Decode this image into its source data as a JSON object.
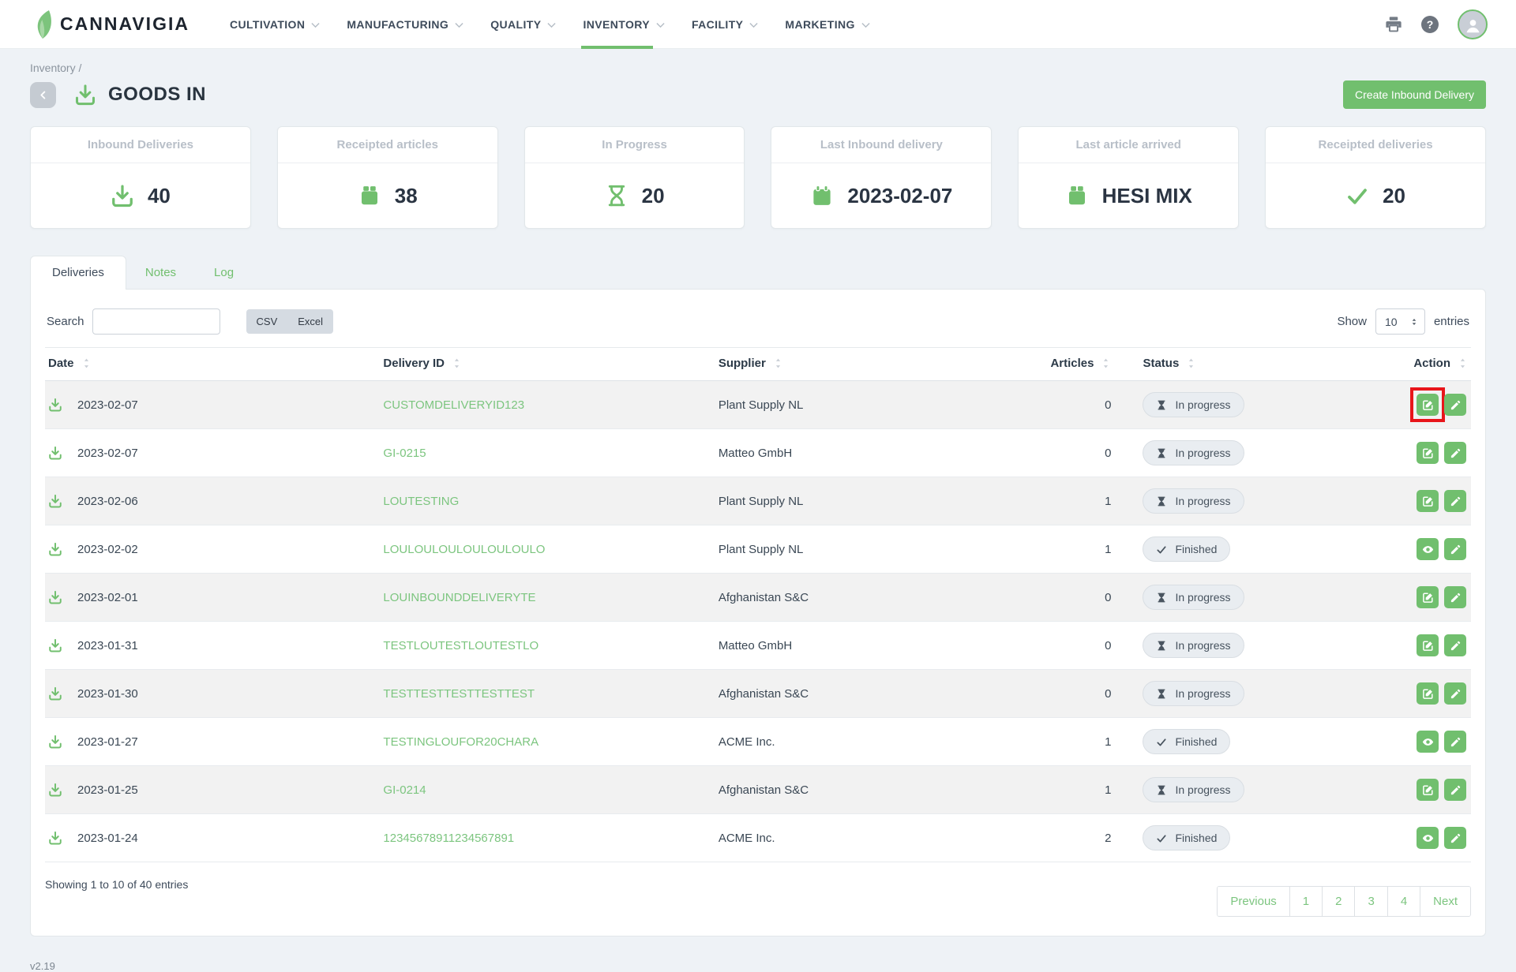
{
  "brand": {
    "name": "CANNAVIGIA"
  },
  "nav": {
    "items": [
      "CULTIVATION",
      "MANUFACTURING",
      "QUALITY",
      "INVENTORY",
      "FACILITY",
      "MARKETING"
    ],
    "active": "INVENTORY"
  },
  "topbar": {
    "help_glyph": "?"
  },
  "icons": [
    "leaf-icon",
    "printer-icon",
    "help-icon",
    "avatar-icon",
    "back-chevron-icon",
    "goods-in-icon",
    "package-icon",
    "hourglass-icon",
    "calendar-icon",
    "check-icon",
    "sort-icon",
    "spinner-icon",
    "edit-square-icon",
    "pencil-icon",
    "eye-icon",
    "chevron-down-icon"
  ],
  "header": {
    "breadcrumb": "Inventory /",
    "title": "GOODS IN",
    "create_button": "Create Inbound Delivery"
  },
  "stats": [
    {
      "label": "Inbound Deliveries",
      "value": "40",
      "icon": "goods-in"
    },
    {
      "label": "Receipted articles",
      "value": "38",
      "icon": "package"
    },
    {
      "label": "In Progress",
      "value": "20",
      "icon": "hourglass"
    },
    {
      "label": "Last Inbound delivery",
      "value": "2023-02-07",
      "icon": "calendar"
    },
    {
      "label": "Last article arrived",
      "value": "HESI MIX",
      "icon": "package"
    },
    {
      "label": "Receipted deliveries",
      "value": "20",
      "icon": "check"
    }
  ],
  "tabs": [
    {
      "label": "Deliveries",
      "active": true
    },
    {
      "label": "Notes",
      "active": false
    },
    {
      "label": "Log",
      "active": false
    }
  ],
  "toolbar": {
    "search_label": "Search",
    "search_value": "",
    "export_buttons": [
      "CSV",
      "Excel"
    ],
    "show_label": "Show",
    "page_size": "10",
    "entries_label": "entries"
  },
  "table": {
    "columns": [
      "Date",
      "Delivery ID",
      "Supplier",
      "Articles",
      "Status",
      "Action"
    ],
    "rows": [
      {
        "date": "2023-02-07",
        "delivery_id": "CUSTOMDELIVERYID123",
        "supplier": "Plant Supply NL",
        "articles": "0",
        "status": "In progress",
        "actions": [
          "edit-square",
          "pencil"
        ],
        "highlight_action": 0
      },
      {
        "date": "2023-02-07",
        "delivery_id": "GI-0215",
        "supplier": "Matteo GmbH",
        "articles": "0",
        "status": "In progress",
        "actions": [
          "edit-square",
          "pencil"
        ]
      },
      {
        "date": "2023-02-06",
        "delivery_id": "LOUTESTING",
        "supplier": "Plant Supply NL",
        "articles": "1",
        "status": "In progress",
        "actions": [
          "edit-square",
          "pencil"
        ]
      },
      {
        "date": "2023-02-02",
        "delivery_id": "LOULOULOULOULOULOULO",
        "supplier": "Plant Supply NL",
        "articles": "1",
        "status": "Finished",
        "actions": [
          "eye",
          "pencil"
        ]
      },
      {
        "date": "2023-02-01",
        "delivery_id": "LOUINBOUNDDELIVERYTE",
        "supplier": "Afghanistan S&C",
        "articles": "0",
        "status": "In progress",
        "actions": [
          "edit-square",
          "pencil"
        ]
      },
      {
        "date": "2023-01-31",
        "delivery_id": "TESTLOUTESTLOUTESTLO",
        "supplier": "Matteo GmbH",
        "articles": "0",
        "status": "In progress",
        "actions": [
          "edit-square",
          "pencil"
        ]
      },
      {
        "date": "2023-01-30",
        "delivery_id": "TESTTESTTESTTESTTEST",
        "supplier": "Afghanistan S&C",
        "articles": "0",
        "status": "In progress",
        "actions": [
          "edit-square",
          "pencil"
        ]
      },
      {
        "date": "2023-01-27",
        "delivery_id": "TESTINGLOUFOR20CHARA",
        "supplier": "ACME Inc.",
        "articles": "1",
        "status": "Finished",
        "actions": [
          "eye",
          "pencil"
        ]
      },
      {
        "date": "2023-01-25",
        "delivery_id": "GI-0214",
        "supplier": "Afghanistan S&C",
        "articles": "1",
        "status": "In progress",
        "actions": [
          "edit-square",
          "pencil"
        ]
      },
      {
        "date": "2023-01-24",
        "delivery_id": "12345678911234567891",
        "supplier": "ACME Inc.",
        "articles": "2",
        "status": "Finished",
        "actions": [
          "eye",
          "pencil"
        ]
      }
    ]
  },
  "status_icons": {
    "In progress": "hourglass-solid",
    "Finished": "check"
  },
  "footer": {
    "showing": "Showing 1 to 10 of 40 entries",
    "pagination": [
      "Previous",
      "1",
      "2",
      "3",
      "4",
      "Next"
    ]
  },
  "version": "v2.19",
  "colors": {
    "accent": "#71bf6e",
    "link": "#7cc57f",
    "highlight_red": "#e8151a",
    "badge_bg": "#e9edf1"
  }
}
